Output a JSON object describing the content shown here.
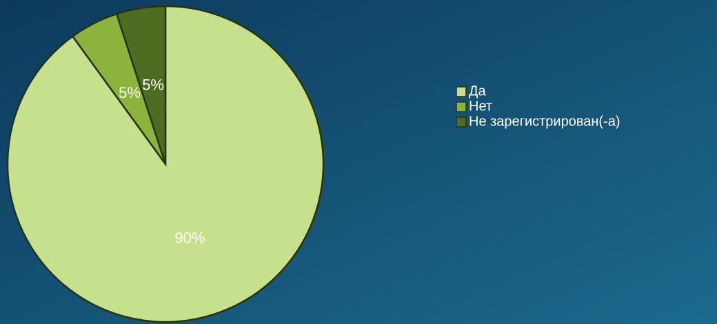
{
  "chart_data": {
    "type": "pie",
    "categories": [
      "Да",
      "Нет",
      "Не зарегистрирован(-а)"
    ],
    "values": [
      90,
      5,
      5
    ],
    "value_labels": [
      "90%",
      "5%",
      "5%"
    ],
    "colors": [
      "#c6e08e",
      "#8cb33c",
      "#4e6c20"
    ],
    "legend": "right"
  }
}
